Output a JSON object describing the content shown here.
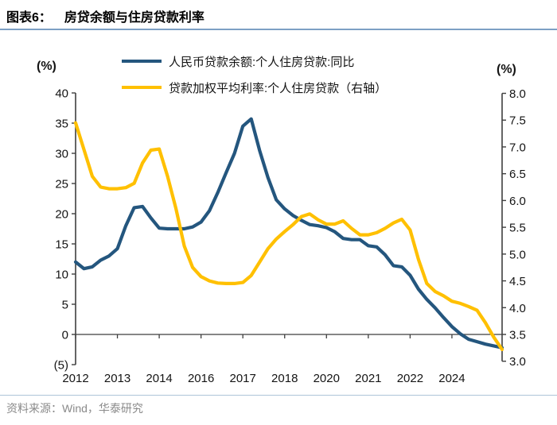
{
  "title": {
    "label": "图表6：",
    "text": "房贷余额与住房贷款利率"
  },
  "legend": {
    "items": [
      {
        "label": "人民币贷款余额:个人住房贷款:同比",
        "color": "#24567e"
      },
      {
        "label": "贷款加权平均利率:个人住房贷款（右轴）",
        "color": "#ffc000"
      }
    ]
  },
  "source": {
    "text": "资料来源：Wind，华泰研究"
  },
  "chart_data": {
    "type": "line",
    "title": "房贷余额与住房贷款利率",
    "grid": false,
    "legend_position": "top",
    "axis_units": {
      "left": "(%)",
      "right": "(%)"
    },
    "left_axis": {
      "min": -5,
      "max": 40,
      "tick_labels": [
        "40",
        "35",
        "30",
        "25",
        "20",
        "15",
        "10",
        "5",
        "0",
        "(5)"
      ],
      "tick_values": [
        40,
        35,
        30,
        25,
        20,
        15,
        10,
        5,
        0,
        -5
      ]
    },
    "right_axis": {
      "min": 3.0,
      "max": 8.0,
      "tick_labels": [
        "8.0",
        "7.5",
        "7.0",
        "6.5",
        "6.0",
        "5.5",
        "5.0",
        "4.5",
        "4.0",
        "3.5",
        "3.0"
      ],
      "tick_values": [
        8.0,
        7.5,
        7.0,
        6.5,
        6.0,
        5.5,
        5.0,
        4.5,
        4.0,
        3.5,
        3.0
      ]
    },
    "x_ticks": {
      "indices": [
        0,
        5,
        10,
        15,
        20,
        25,
        30,
        35,
        40,
        45,
        50
      ],
      "labels": [
        "2012",
        "2013",
        "2014",
        "2016",
        "2017",
        "2018",
        "2020",
        "2021",
        "2022",
        "2024",
        ""
      ]
    },
    "x": [
      "2012Q1",
      "2012Q2",
      "2012Q3",
      "2012Q4",
      "2013Q1",
      "2013Q2",
      "2013Q3",
      "2013Q4",
      "2014Q1",
      "2014Q2",
      "2014Q3",
      "2014Q4",
      "2015Q1",
      "2015Q2",
      "2015Q3",
      "2015Q4",
      "2016Q1",
      "2016Q2",
      "2016Q3",
      "2016Q4",
      "2017Q1",
      "2017Q2",
      "2017Q3",
      "2017Q4",
      "2018Q1",
      "2018Q2",
      "2018Q3",
      "2018Q4",
      "2019Q1",
      "2019Q2",
      "2019Q3",
      "2019Q4",
      "2020Q1",
      "2020Q2",
      "2020Q3",
      "2020Q4",
      "2021Q1",
      "2021Q2",
      "2021Q3",
      "2021Q4",
      "2022Q1",
      "2022Q2",
      "2022Q3",
      "2022Q4",
      "2023Q1",
      "2023Q2",
      "2023Q3",
      "2023Q4",
      "2024Q1",
      "2024Q2",
      "2024Q3",
      "2024Q4"
    ],
    "series": [
      {
        "name": "人民币贷款余额:个人住房贷款:同比",
        "axis": "left",
        "color": "#24567e",
        "values": [
          12.0,
          10.9,
          11.2,
          12.3,
          13.0,
          14.2,
          18.0,
          21.0,
          21.2,
          19.3,
          17.6,
          17.5,
          17.5,
          17.5,
          17.8,
          18.6,
          20.5,
          23.5,
          26.8,
          30.0,
          34.5,
          35.7,
          30.5,
          26.0,
          22.3,
          20.8,
          19.7,
          18.9,
          18.2,
          18.0,
          17.7,
          17.0,
          15.9,
          15.7,
          15.7,
          14.7,
          14.5,
          13.2,
          11.4,
          11.2,
          9.8,
          7.5,
          5.8,
          4.4,
          2.8,
          1.3,
          0.1,
          -0.8,
          -1.2,
          -1.6,
          -1.9,
          -2.2
        ]
      },
      {
        "name": "贷款加权平均利率:个人住房贷款（右轴）",
        "axis": "right",
        "color": "#ffc000",
        "values": [
          7.45,
          6.95,
          6.45,
          6.25,
          6.22,
          6.22,
          6.24,
          6.32,
          6.7,
          6.94,
          6.96,
          6.45,
          5.85,
          5.15,
          4.75,
          4.58,
          4.5,
          4.46,
          4.45,
          4.45,
          4.47,
          4.6,
          4.85,
          5.1,
          5.28,
          5.42,
          5.55,
          5.7,
          5.75,
          5.64,
          5.56,
          5.56,
          5.62,
          5.48,
          5.36,
          5.36,
          5.4,
          5.48,
          5.58,
          5.65,
          5.45,
          4.9,
          4.45,
          4.3,
          4.22,
          4.12,
          4.08,
          4.02,
          3.95,
          3.72,
          3.45,
          3.22
        ]
      }
    ]
  }
}
